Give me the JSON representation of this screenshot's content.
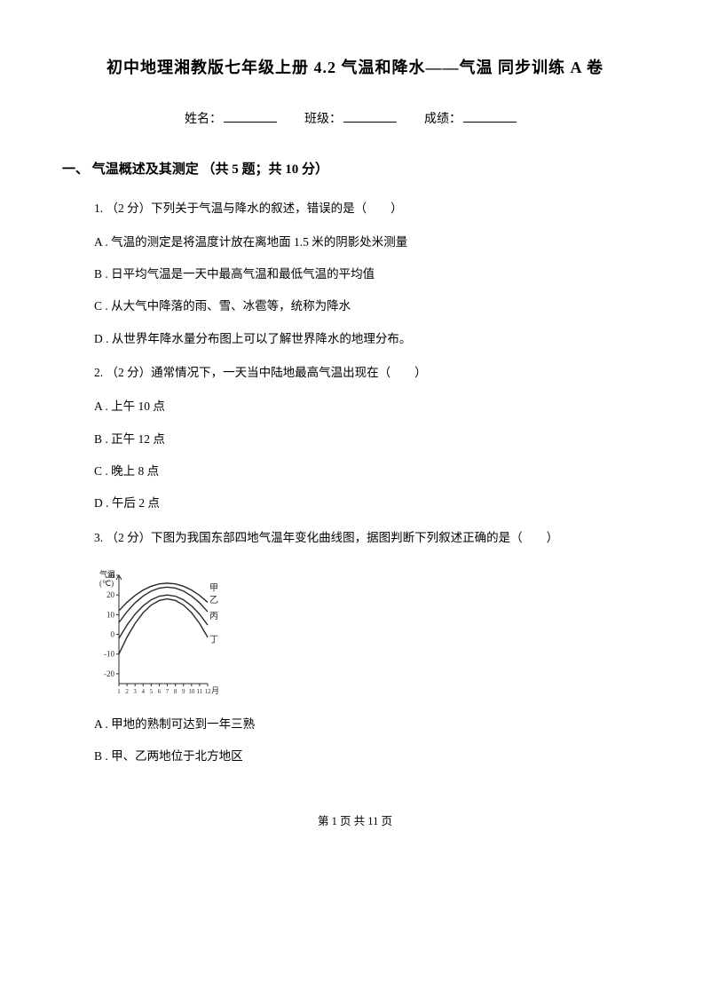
{
  "title": "初中地理湘教版七年级上册 4.2 气温和降水——气温  同步训练 A 卷",
  "info": {
    "name_label": "姓名：",
    "class_label": "班级：",
    "score_label": "成绩："
  },
  "section": {
    "heading": "一、 气温概述及其测定 （共 5 题；共 10 分）"
  },
  "q1": {
    "text": "1.  （2 分）下列关于气温与降水的叙述，错误的是（　　）",
    "A": "A .  气温的测定是将温度计放在离地面 1.5 米的阴影处米测量",
    "B": "B .  日平均气温是一天中最高气温和最低气温的平均值",
    "C": "C .  从大气中降落的雨、雪、冰雹等，统称为降水",
    "D": "D .  从世界年降水量分布图上可以了解世界降水的地理分布。"
  },
  "q2": {
    "text": "2.  （2 分）通常情况下，一天当中陆地最高气温出现在（　　）",
    "A": "A .  上午 10 点",
    "B": "B .  正午 12 点",
    "C": "C .  晚上 8 点",
    "D": "D .  午后 2 点"
  },
  "q3": {
    "text": "3.  （2 分）下图为我国东部四地气温年变化曲线图，据图判断下列叙述正确的是（　　）",
    "A": "A .  甲地的熟制可达到一年三熟",
    "B": "B .  甲、乙两地位于北方地区"
  },
  "chart": {
    "width": 150,
    "height": 150,
    "stroke": "#2a2a2a",
    "line_width": 1.4,
    "y_label_top": "气温",
    "y_unit": "(℃)",
    "y_ticks": [
      "30",
      "20",
      "10",
      "0",
      "-10",
      "-20"
    ],
    "x_ticks": [
      "1",
      "2",
      "3",
      "4",
      "5",
      "6",
      "7",
      "8",
      "9",
      "10",
      "11",
      "12"
    ],
    "x_unit": "月",
    "series_labels": [
      "甲",
      "乙",
      "丙",
      "丁"
    ],
    "font_size": 9
  },
  "footer": "第  1  页 共  11  页"
}
